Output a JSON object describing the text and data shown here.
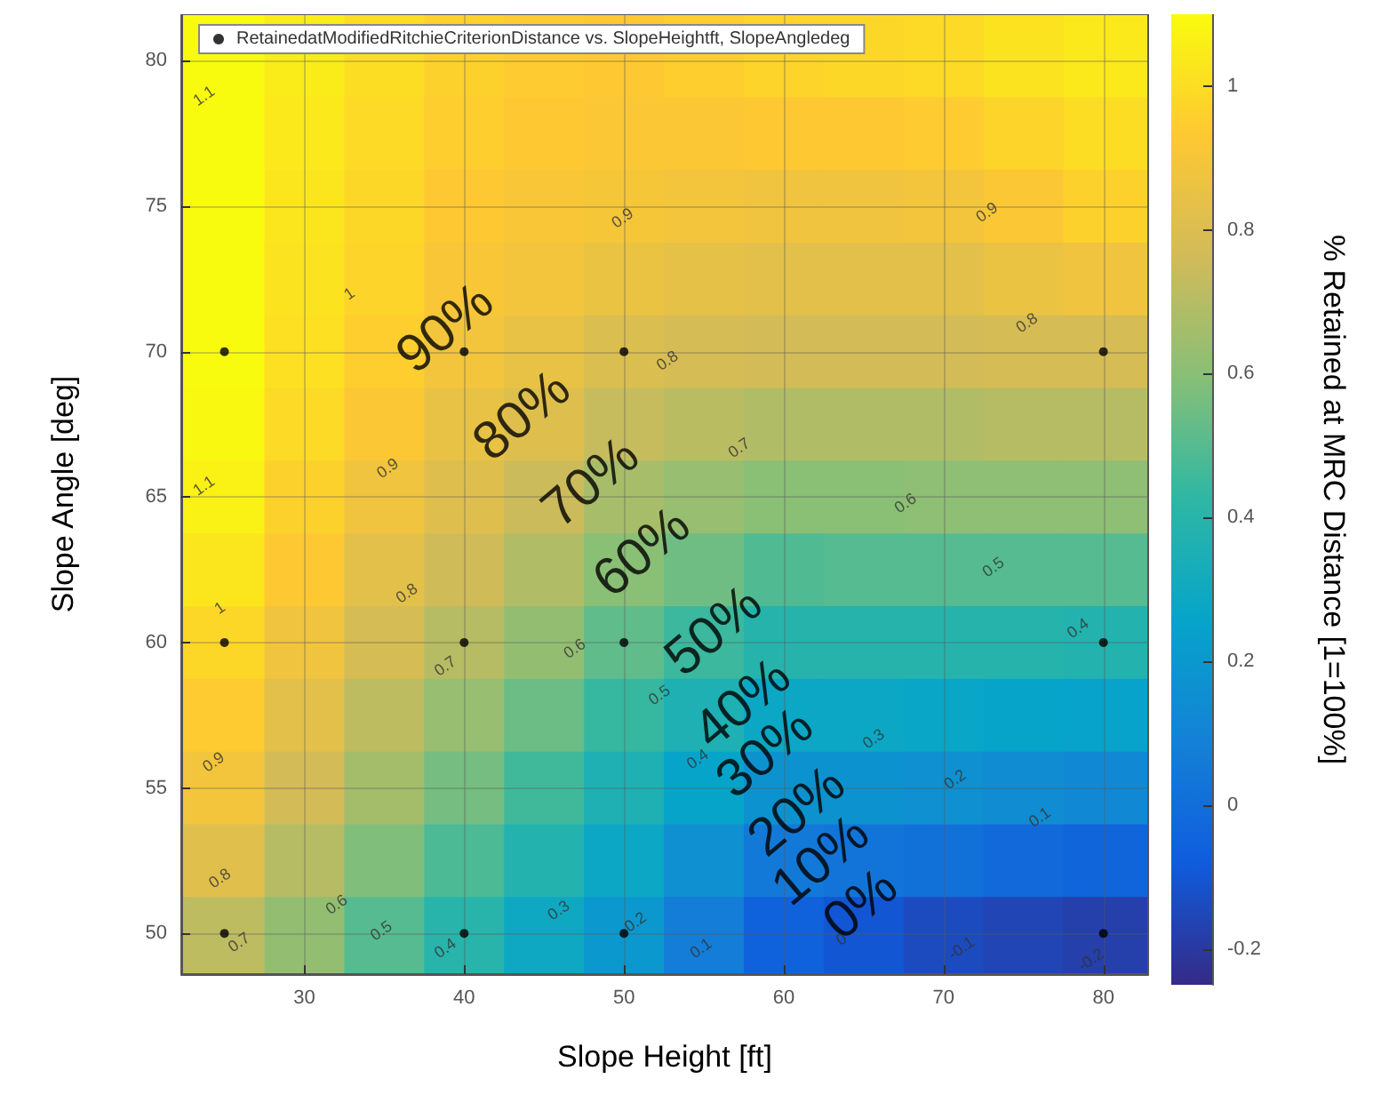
{
  "chart_data": {
    "type": "heatmap",
    "xlabel": "Slope Height [ft]",
    "ylabel": "Slope Angle [deg]",
    "clabel": "% Retained at MRC Distance [1=100%]",
    "x": [
      25,
      30,
      35,
      40,
      45,
      50,
      55,
      60,
      65,
      70,
      75,
      80
    ],
    "y": [
      80,
      77.5,
      75,
      72.5,
      70,
      67.5,
      65,
      62.5,
      60,
      57.5,
      55,
      52.5,
      50
    ],
    "cells": [
      [
        1.13,
        1.05,
        1.0,
        0.96,
        0.94,
        0.93,
        0.95,
        0.97,
        0.98,
        0.99,
        1.02,
        1.04
      ],
      [
        1.11,
        1.04,
        0.99,
        0.95,
        0.93,
        0.92,
        0.92,
        0.93,
        0.93,
        0.94,
        0.97,
        1.0
      ],
      [
        1.1,
        1.03,
        0.98,
        0.93,
        0.91,
        0.9,
        0.89,
        0.88,
        0.88,
        0.89,
        0.92,
        0.96
      ],
      [
        1.1,
        1.02,
        0.97,
        0.91,
        0.89,
        0.86,
        0.84,
        0.83,
        0.83,
        0.83,
        0.86,
        0.88
      ],
      [
        1.1,
        1.01,
        0.95,
        0.89,
        0.85,
        0.8,
        0.78,
        0.77,
        0.77,
        0.77,
        0.78,
        0.78
      ],
      [
        1.09,
        0.99,
        0.92,
        0.85,
        0.81,
        0.74,
        0.71,
        0.69,
        0.69,
        0.69,
        0.7,
        0.7
      ],
      [
        1.07,
        0.96,
        0.88,
        0.81,
        0.75,
        0.67,
        0.63,
        0.6,
        0.6,
        0.61,
        0.61,
        0.61
      ],
      [
        1.03,
        0.93,
        0.83,
        0.76,
        0.69,
        0.6,
        0.55,
        0.49,
        0.5,
        0.5,
        0.5,
        0.5
      ],
      [
        0.98,
        0.88,
        0.78,
        0.7,
        0.62,
        0.52,
        0.45,
        0.39,
        0.39,
        0.39,
        0.39,
        0.38
      ],
      [
        0.94,
        0.83,
        0.72,
        0.63,
        0.54,
        0.44,
        0.36,
        0.28,
        0.28,
        0.27,
        0.26,
        0.25
      ],
      [
        0.89,
        0.77,
        0.66,
        0.56,
        0.46,
        0.36,
        0.26,
        0.17,
        0.17,
        0.16,
        0.14,
        0.12
      ],
      [
        0.82,
        0.7,
        0.58,
        0.48,
        0.38,
        0.28,
        0.16,
        0.05,
        0.03,
        0.01,
        -0.02,
        -0.04
      ],
      [
        0.72,
        0.62,
        0.5,
        0.4,
        0.29,
        0.2,
        0.07,
        -0.06,
        -0.1,
        -0.14,
        -0.16,
        -0.18
      ]
    ],
    "xlim": [
      22.3,
      82.8
    ],
    "xticks": [
      30,
      40,
      50,
      60,
      70,
      80
    ],
    "ylim": [
      48.6,
      81.6
    ],
    "yticks": [
      50,
      55,
      60,
      65,
      70,
      75,
      80
    ],
    "clim": [
      -0.25,
      1.1
    ],
    "cticks": [
      -0.2,
      0,
      0.2,
      0.4,
      0.6,
      0.8,
      1
    ],
    "series": [
      {
        "type": "scatter",
        "name": "RetainedatModifiedRitchieCriterionDistance vs. SlopeHeightft, SlopeAngledeg",
        "color": "#000000",
        "x": [
          25,
          25,
          25,
          40,
          40,
          40,
          50,
          50,
          50,
          80,
          80,
          80
        ],
        "values": [
          50,
          60,
          70,
          50,
          60,
          70,
          50,
          60,
          70,
          50,
          60,
          70
        ]
      }
    ],
    "marker": "circle",
    "grid": true,
    "legend": "top",
    "annotations": [
      "90%",
      "80%",
      "70%",
      "60%",
      "50%",
      "40%",
      "30%",
      "20%",
      "10%",
      "0%",
      "1.1",
      "1.1",
      "1",
      "1",
      "0.9",
      "0.9",
      "0.9",
      "0.9",
      "0.8",
      "0.8",
      "0.8",
      "0.8",
      "0.7",
      "0.7",
      "0.7",
      "0.6",
      "0.6",
      "0.6",
      "0.5",
      "0.5",
      "0.5",
      "0.4",
      "0.4",
      "0.4",
      "0.3",
      "0.3",
      "0.2",
      "0.2",
      "0.1",
      "0.1",
      "0",
      "-0.1",
      "-0.2"
    ]
  }
}
